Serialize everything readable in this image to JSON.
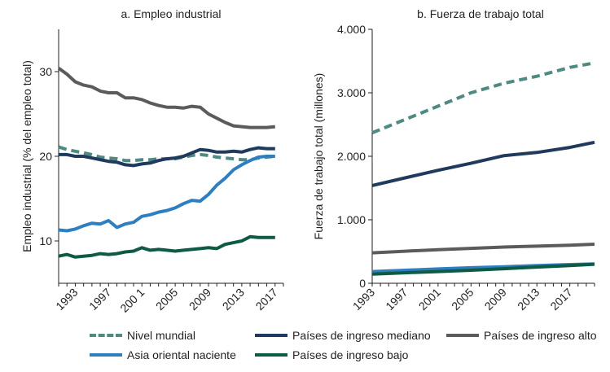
{
  "chart_data": [
    {
      "type": "line",
      "title": "a. Empleo industrial",
      "ylabel": "Empleo industrial (% del empleo total)",
      "xlabel": "",
      "ylim": [
        5,
        35
      ],
      "yticks": [
        10,
        20,
        30
      ],
      "xlim": [
        1991,
        2018
      ],
      "xtick_labels": [
        "1993",
        "1997",
        "200 1",
        "2005",
        "2009",
        "2013",
        "2017"
      ],
      "xtick_values": [
        1993,
        1997,
        2001,
        2005,
        2009,
        2013,
        2017
      ],
      "series": [
        {
          "key": "high",
          "name": "Países de ingreso alto",
          "x": [
            1991,
            1992,
            1993,
            1994,
            1995,
            1996,
            1997,
            1998,
            1999,
            2000,
            2001,
            2002,
            2003,
            2004,
            2005,
            2006,
            2007,
            2008,
            2009,
            2010,
            2011,
            2012,
            2013,
            2014,
            2015,
            2016,
            2017
          ],
          "values": [
            30.4,
            29.7,
            28.8,
            28.4,
            28.2,
            27.7,
            27.5,
            27.5,
            26.9,
            26.9,
            26.7,
            26.3,
            26.0,
            25.8,
            25.8,
            25.7,
            25.9,
            25.8,
            25.0,
            24.5,
            24.0,
            23.6,
            23.5,
            23.4,
            23.4,
            23.4,
            23.5
          ]
        },
        {
          "key": "world",
          "name": "Nivel mundial",
          "dashed": true,
          "x": [
            1991,
            1992,
            1993,
            1994,
            1995,
            1996,
            1997,
            1998,
            1999,
            2000,
            2001,
            2002,
            2003,
            2004,
            2005,
            2006,
            2007,
            2008,
            2009,
            2010,
            2011,
            2012,
            2013,
            2014,
            2015,
            2016,
            2017
          ],
          "values": [
            21.1,
            20.8,
            20.6,
            20.4,
            20.2,
            19.9,
            19.8,
            19.7,
            19.5,
            19.5,
            19.6,
            19.6,
            19.7,
            19.7,
            19.7,
            19.9,
            20.1,
            20.2,
            20.1,
            19.9,
            19.8,
            19.7,
            19.6,
            19.6,
            19.8,
            19.9,
            20.0
          ]
        },
        {
          "key": "middle",
          "name": "Países de ingreso mediano",
          "x": [
            1991,
            1992,
            1993,
            1994,
            1995,
            1996,
            1997,
            1998,
            1999,
            2000,
            2001,
            2002,
            2003,
            2004,
            2005,
            2006,
            2007,
            2008,
            2009,
            2010,
            2011,
            2012,
            2013,
            2014,
            2015,
            2016,
            2017
          ],
          "values": [
            20.2,
            20.2,
            20.0,
            20.0,
            19.8,
            19.6,
            19.4,
            19.3,
            19.0,
            18.9,
            19.1,
            19.2,
            19.5,
            19.7,
            19.8,
            20.0,
            20.4,
            20.8,
            20.7,
            20.5,
            20.5,
            20.6,
            20.5,
            20.8,
            21.0,
            20.9,
            20.9
          ]
        },
        {
          "key": "eap",
          "name": "Asia oriental naciente",
          "x": [
            1991,
            1992,
            1993,
            1994,
            1995,
            1996,
            1997,
            1998,
            1999,
            2000,
            2001,
            2002,
            2003,
            2004,
            2005,
            2006,
            2007,
            2008,
            2009,
            2010,
            2011,
            2012,
            2013,
            2014,
            2015,
            2016,
            2017
          ],
          "values": [
            11.3,
            11.2,
            11.4,
            11.8,
            12.1,
            12.0,
            12.4,
            11.6,
            12.0,
            12.2,
            12.9,
            13.1,
            13.4,
            13.6,
            13.9,
            14.4,
            14.8,
            14.7,
            15.5,
            16.6,
            17.4,
            18.4,
            19.0,
            19.5,
            19.9,
            20.0,
            20.0
          ]
        },
        {
          "key": "low",
          "name": "Países de ingreso bajo",
          "x": [
            1991,
            1992,
            1993,
            1994,
            1995,
            1996,
            1997,
            1998,
            1999,
            2000,
            2001,
            2002,
            2003,
            2004,
            2005,
            2006,
            2007,
            2008,
            2009,
            2010,
            2011,
            2012,
            2013,
            2014,
            2015,
            2016,
            2017
          ],
          "values": [
            8.2,
            8.4,
            8.1,
            8.2,
            8.3,
            8.5,
            8.4,
            8.5,
            8.7,
            8.8,
            9.2,
            8.9,
            9.0,
            8.9,
            8.8,
            8.9,
            9.0,
            9.1,
            9.2,
            9.1,
            9.6,
            9.8,
            10.0,
            10.5,
            10.4,
            10.4,
            10.4
          ]
        }
      ]
    },
    {
      "type": "line",
      "title": "b. Fuerza de trabajo total",
      "ylabel": "Fuerza de trabajo total (millones)",
      "xlabel": "",
      "ylim": [
        0,
        4000
      ],
      "yticks": [
        0,
        1000,
        2000,
        3000,
        4000
      ],
      "ytick_labels": [
        "0",
        "1.000",
        "2.000",
        "3.000",
        "4.000"
      ],
      "xlim": [
        1993,
        2020
      ],
      "xtick_labels": [
        "1993",
        "1997",
        "2001",
        "2005",
        "2009",
        "2013",
        "2017"
      ],
      "xtick_values": [
        1993,
        1997,
        2001,
        2005,
        2009,
        2013,
        2017
      ],
      "series": [
        {
          "key": "world",
          "name": "Nivel mundial",
          "dashed": true,
          "x": [
            1993,
            1997,
            2001,
            2005,
            2009,
            2013,
            2017,
            2020
          ],
          "values": [
            2370,
            2580,
            2790,
            3000,
            3150,
            3260,
            3400,
            3470
          ]
        },
        {
          "key": "middle",
          "name": "Países de ingreso mediano",
          "x": [
            1993,
            1997,
            2001,
            2005,
            2009,
            2013,
            2017,
            2020
          ],
          "values": [
            1540,
            1660,
            1780,
            1890,
            2010,
            2060,
            2140,
            2220
          ]
        },
        {
          "key": "high",
          "name": "Países de ingreso alto",
          "x": [
            1993,
            1997,
            2001,
            2005,
            2009,
            2013,
            2017,
            2020
          ],
          "values": [
            480,
            505,
            530,
            550,
            570,
            585,
            600,
            615
          ]
        },
        {
          "key": "eap",
          "name": "Asia oriental naciente",
          "x": [
            1993,
            1997,
            2001,
            2005,
            2009,
            2013,
            2017,
            2020
          ],
          "values": [
            185,
            205,
            225,
            245,
            260,
            280,
            295,
            305
          ]
        },
        {
          "key": "low",
          "name": "Países de ingreso bajo",
          "x": [
            1993,
            1997,
            2001,
            2005,
            2009,
            2013,
            2017,
            2020
          ],
          "values": [
            145,
            165,
            185,
            205,
            230,
            255,
            280,
            300
          ]
        }
      ]
    }
  ],
  "colors": {
    "world": "#4e8a81",
    "middle": "#1f3a5c",
    "high": "#5b5b5d",
    "eap": "#2d7fc1",
    "low": "#0e5a45"
  },
  "legend": [
    {
      "key": "world",
      "label": "Nivel mundial"
    },
    {
      "key": "middle",
      "label": "Países de ingreso mediano"
    },
    {
      "key": "high",
      "label": "Países de ingreso alto"
    },
    {
      "key": "eap",
      "label": "Asia oriental naciente"
    },
    {
      "key": "low",
      "label": "Países de ingreso bajo"
    }
  ]
}
